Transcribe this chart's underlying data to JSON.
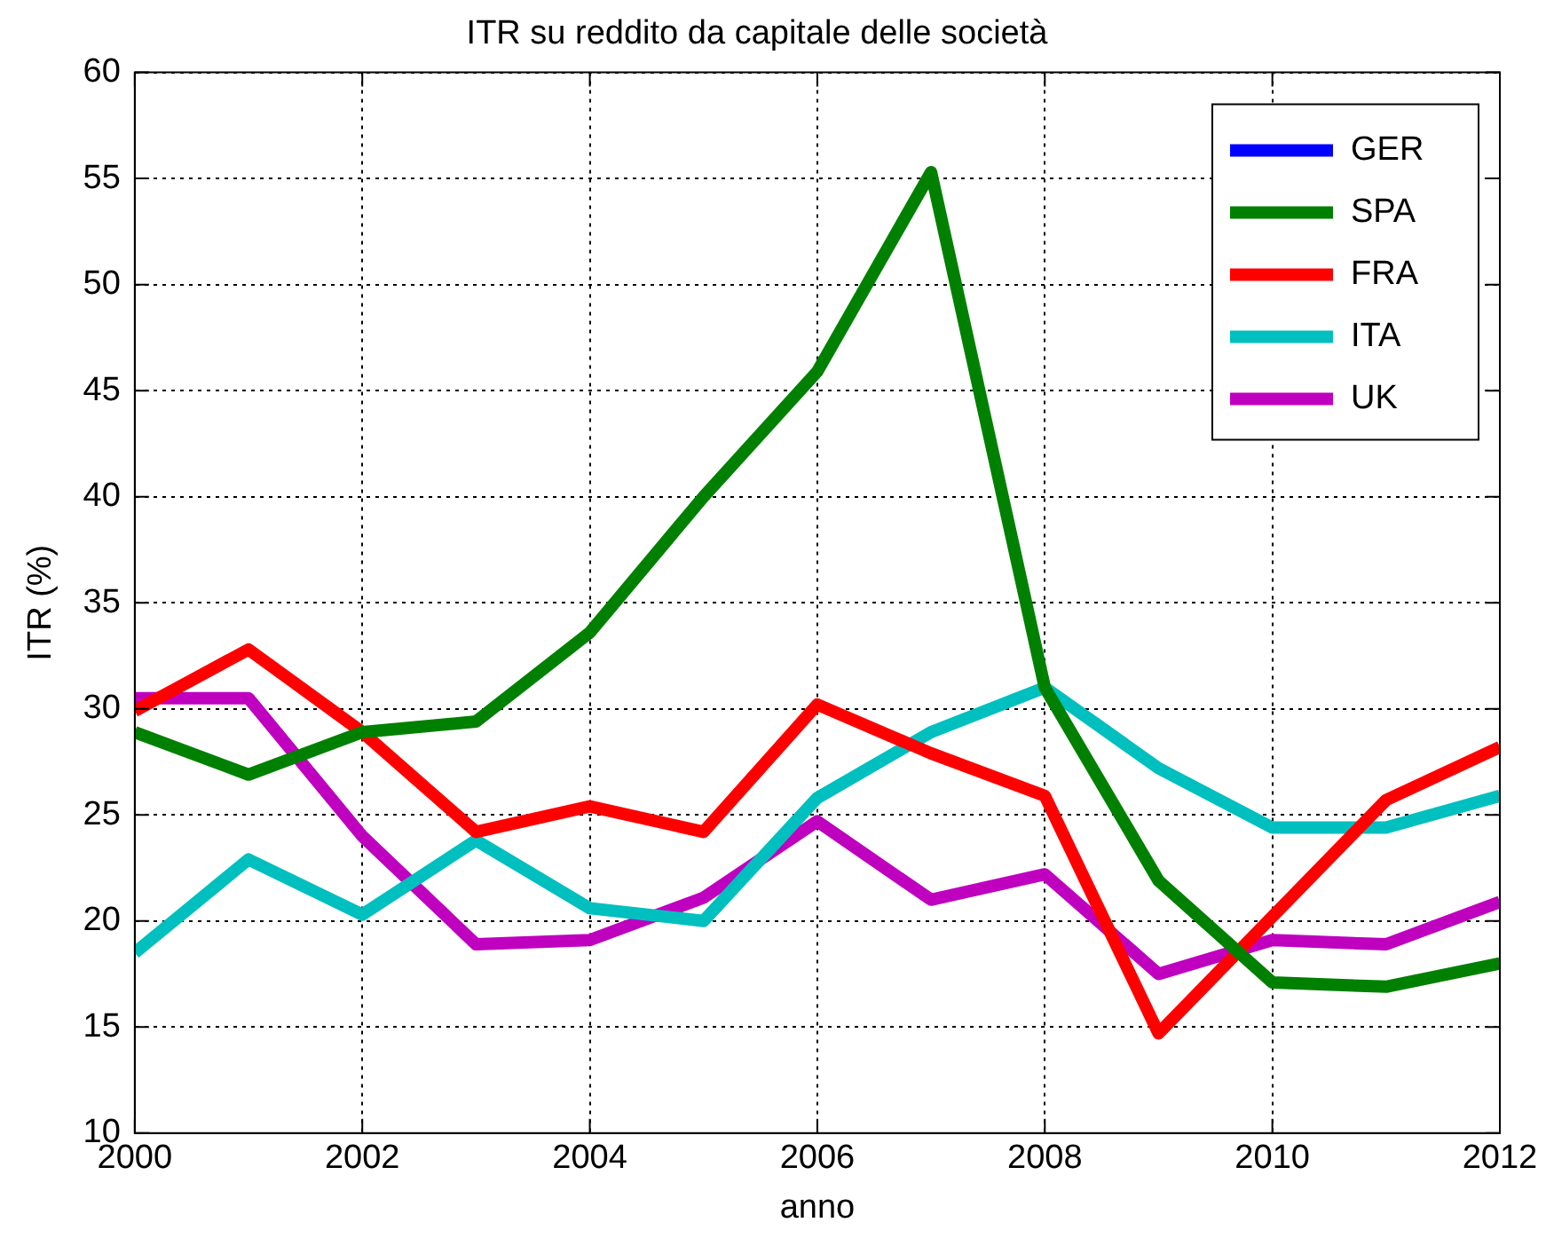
{
  "chart_data": {
    "type": "line",
    "title": "ITR su reddito da capitale delle società",
    "xlabel": "anno",
    "ylabel": "ITR (%)",
    "x": [
      2000,
      2001,
      2002,
      2003,
      2004,
      2005,
      2006,
      2007,
      2008,
      2009,
      2010,
      2011,
      2012
    ],
    "series": [
      {
        "name": "GER",
        "color": "#0000ff",
        "values": [
          null,
          null,
          null,
          null,
          null,
          null,
          null,
          null,
          null,
          null,
          null,
          null,
          null
        ]
      },
      {
        "name": "SPA",
        "color": "#008000",
        "values": [
          28.9,
          26.9,
          28.9,
          29.4,
          33.6,
          40.0,
          45.9,
          55.3,
          31.0,
          21.9,
          17.1,
          16.9,
          18.0
        ]
      },
      {
        "name": "FRA",
        "color": "#ff0000",
        "values": [
          29.9,
          32.8,
          28.9,
          24.2,
          25.4,
          24.2,
          30.2,
          27.9,
          25.9,
          14.7,
          20.2,
          25.7,
          28.2
        ]
      },
      {
        "name": "ITA",
        "color": "#00bfbf",
        "values": [
          18.5,
          22.9,
          20.3,
          23.8,
          20.6,
          20.0,
          25.8,
          28.9,
          31.0,
          27.2,
          24.4,
          24.4,
          25.9
        ]
      },
      {
        "name": "UK",
        "color": "#bf00bf",
        "values": [
          30.5,
          30.5,
          24.0,
          18.9,
          19.1,
          21.1,
          24.7,
          21.0,
          22.2,
          17.5,
          19.1,
          18.9,
          20.9
        ]
      }
    ],
    "xlim": [
      2000,
      2012
    ],
    "xticks": [
      2000,
      2002,
      2004,
      2006,
      2008,
      2010,
      2012
    ],
    "ylim": [
      10,
      60
    ],
    "yticks": [
      10,
      15,
      20,
      25,
      30,
      35,
      40,
      45,
      50,
      55,
      60
    ],
    "grid": true,
    "legend": "top right",
    "marker": "none",
    "line_style": "solid"
  }
}
